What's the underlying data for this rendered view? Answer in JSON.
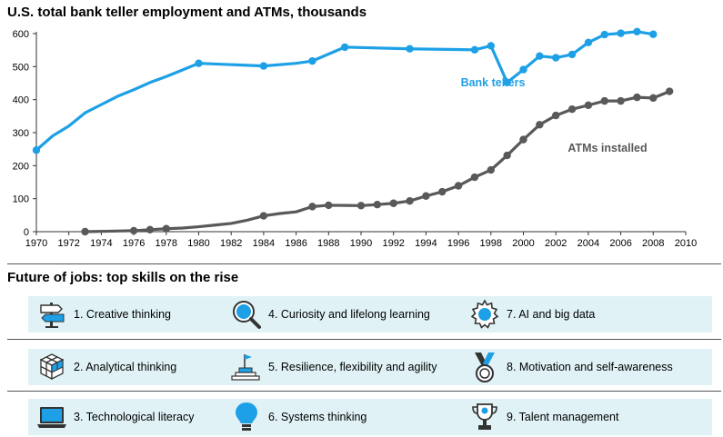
{
  "chart_data": {
    "type": "line",
    "title": "U.S. total bank teller employment and ATMs, thousands",
    "xlim": [
      1970,
      2010
    ],
    "ylim": [
      0,
      600
    ],
    "x_ticks": [
      1970,
      1972,
      1974,
      1976,
      1978,
      1980,
      1982,
      1984,
      1986,
      1988,
      1990,
      1992,
      1994,
      1996,
      1998,
      2000,
      2002,
      2004,
      2006,
      2008,
      2010
    ],
    "y_ticks": [
      0,
      100,
      200,
      300,
      400,
      500,
      600
    ],
    "grid": false,
    "series": [
      {
        "name": "Bank tellers",
        "color": "#1ea0e6",
        "x": [
          1970,
          1971,
          1972,
          1973,
          1974,
          1975,
          1976,
          1977,
          1978,
          1979,
          1980,
          1984,
          1986,
          1987,
          1989,
          1993,
          1997,
          1998,
          1999,
          2000,
          2001,
          2002,
          2003,
          2004,
          2005,
          2006,
          2007,
          2008
        ],
        "y": [
          247,
          290,
          320,
          360,
          385,
          410,
          430,
          452,
          470,
          490,
          510,
          502,
          510,
          517,
          559,
          554,
          551,
          563,
          452,
          491,
          532,
          527,
          537,
          573,
          597,
          601,
          606,
          598
        ],
        "markers": [
          true,
          false,
          false,
          false,
          false,
          false,
          false,
          false,
          false,
          false,
          true,
          true,
          false,
          true,
          true,
          true,
          true,
          true,
          true,
          true,
          true,
          true,
          true,
          true,
          true,
          true,
          true,
          true
        ]
      },
      {
        "name": "ATMs installed",
        "color": "#595959",
        "x": [
          1973,
          1976,
          1977,
          1978,
          1979,
          1980,
          1981,
          1982,
          1983,
          1984,
          1985,
          1986,
          1987,
          1988,
          1990,
          1991,
          1992,
          1993,
          1994,
          1995,
          1996,
          1997,
          1998,
          1999,
          2000,
          2001,
          2002,
          2003,
          2004,
          2005,
          2006,
          2007,
          2008,
          2009
        ],
        "y": [
          0,
          3,
          6,
          9,
          11,
          15,
          20,
          25,
          35,
          48,
          55,
          60,
          76,
          80,
          79,
          82,
          86,
          93,
          108,
          121,
          139,
          165,
          187,
          231,
          279,
          324,
          352,
          371,
          383,
          396,
          396,
          407,
          405,
          425
        ],
        "markers": [
          true,
          true,
          true,
          true,
          false,
          false,
          false,
          false,
          false,
          true,
          false,
          false,
          true,
          true,
          true,
          true,
          true,
          true,
          true,
          true,
          true,
          true,
          true,
          true,
          true,
          true,
          true,
          true,
          true,
          true,
          true,
          true,
          true,
          true
        ]
      }
    ]
  },
  "skills": {
    "title": "Future of jobs: top skills on the rise",
    "accent": "#1ea0e6",
    "icon_color": "#1ea0e6",
    "rows": [
      [
        {
          "label": "1. Creative thinking",
          "icon": "signpost-icon"
        },
        {
          "label": "4. Curiosity and lifelong learning",
          "icon": "magnifier-icon"
        },
        {
          "label": "7. AI and big data",
          "icon": "gear-icon"
        }
      ],
      [
        {
          "label": "2. Analytical thinking",
          "icon": "cubes-icon"
        },
        {
          "label": "5. Resilience, flexibility and agility",
          "icon": "podium-flag-icon"
        },
        {
          "label": "8. Motivation and self-awareness",
          "icon": "medal-icon"
        }
      ],
      [
        {
          "label": "3. Technological literacy",
          "icon": "laptop-icon"
        },
        {
          "label": "6. Systems thinking",
          "icon": "lightbulb-icon"
        },
        {
          "label": "9. Talent management",
          "icon": "trophy-icon"
        }
      ]
    ]
  }
}
